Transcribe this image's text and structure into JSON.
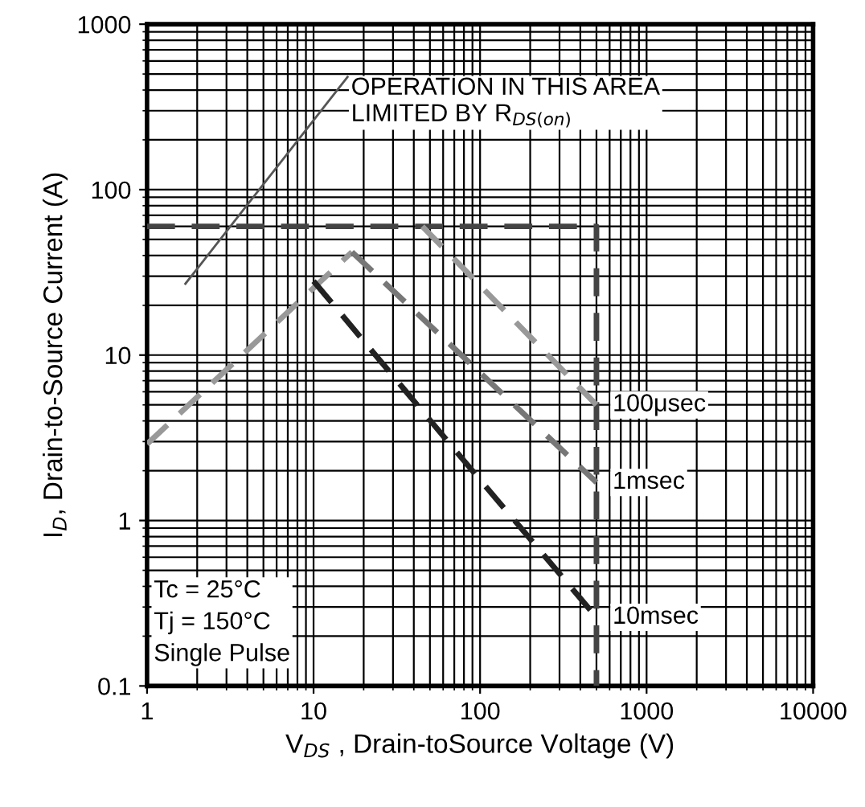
{
  "chart_data": {
    "type": "line",
    "log": "xy",
    "xlabel": "V$_{DS}$ , Drain-toSource Voltage (V)",
    "ylabel": "I$_{D}$, Drain-to-Source Current (A)",
    "xlim": [
      1,
      10000
    ],
    "ylim": [
      0.1,
      1000
    ],
    "xticks": [
      1,
      10,
      100,
      1000,
      10000
    ],
    "yticks": [
      0.1,
      1,
      10,
      100,
      1000
    ],
    "grid": true,
    "marker": "none",
    "series": [
      {
        "color": "#555555",
        "line_style": "solid",
        "x": [
          1.7,
          16
        ],
        "values": [
          27,
          480
        ]
      },
      {
        "color": "#444444",
        "line_style": "dashed",
        "x": [
          1,
          500,
          500
        ],
        "values": [
          60,
          60,
          0.1
        ]
      },
      {
        "color": "#999999",
        "line_style": "dashed",
        "x": [
          1,
          17
        ],
        "values": [
          2.9,
          42
        ]
      },
      {
        "name": "100μsec",
        "color": "#999999",
        "line_style": "dashed",
        "x": [
          45,
          500
        ],
        "values": [
          60,
          5
        ]
      },
      {
        "name": "1msec",
        "color": "#777777",
        "line_style": "dashed",
        "x": [
          17,
          500
        ],
        "values": [
          42,
          1.7
        ]
      },
      {
        "name": "10msec",
        "color": "#222222",
        "line_style": "dashed",
        "x": [
          10,
          80,
          500
        ],
        "values": [
          28,
          2.3,
          0.26
        ]
      }
    ],
    "annotations": [
      {
        "text": "OPERATION IN THIS AREA\nLIMITED BY R$_{DS(on)}$",
        "x": 16,
        "y": 480
      },
      "Tc = 25°C\nTj = 150°C\nSingle Pulse"
    ]
  }
}
